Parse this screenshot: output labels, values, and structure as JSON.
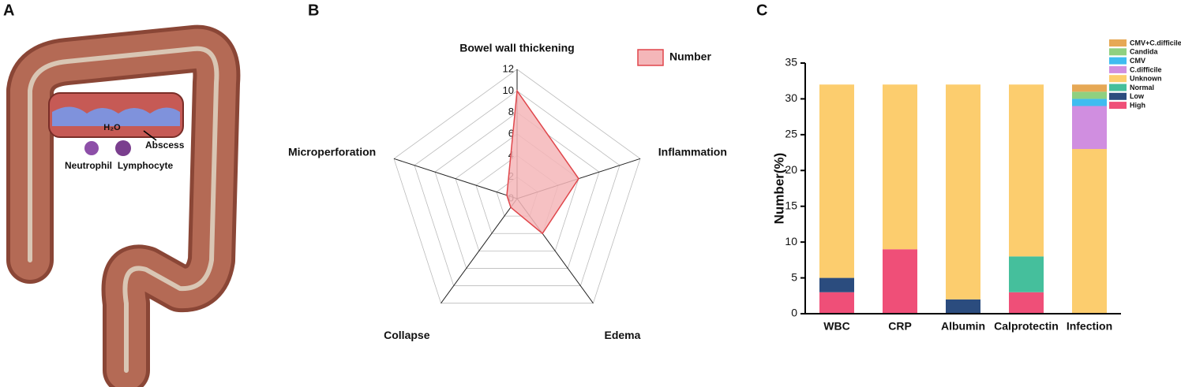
{
  "illustration": {
    "panel_label": "A",
    "labels": [
      "H₂O",
      "Abscess",
      "Neutrophil",
      "Lymphocyte"
    ]
  },
  "chart_data": [
    {
      "type": "radar",
      "panel_label": "B",
      "categories": [
        "Bowel wall thickening",
        "Inflammation",
        "Edema",
        "Collapse",
        "Microperforation"
      ],
      "series": [
        {
          "name": "Number",
          "color": "#f4b6b9",
          "edge_color": "#e0474c",
          "values": [
            10,
            6,
            4,
            1,
            1
          ]
        }
      ],
      "rlim": [
        0,
        12
      ],
      "rticks": [
        0,
        2,
        4,
        6,
        8,
        10,
        12
      ],
      "legend": "upper right"
    },
    {
      "type": "stacked_bar",
      "panel_label": "C",
      "ylabel": "Number(%)",
      "categories": [
        "WBC",
        "CRP",
        "Albumin",
        "Calprotectin",
        "Infection"
      ],
      "series": [
        {
          "name": "High",
          "color": "#ef4f78",
          "values": [
            3,
            9,
            0,
            3,
            0
          ]
        },
        {
          "name": "Low",
          "color": "#2b4c7e",
          "values": [
            2,
            0,
            2,
            0,
            0
          ]
        },
        {
          "name": "Normal",
          "color": "#45bf9c",
          "values": [
            0,
            0,
            0,
            5,
            0
          ]
        },
        {
          "name": "Unknown",
          "color": "#fccd6e",
          "values": [
            27,
            23,
            30,
            24,
            23
          ]
        },
        {
          "name": "C.difficile",
          "color": "#d08ee0",
          "values": [
            0,
            0,
            0,
            0,
            6
          ]
        },
        {
          "name": "CMV",
          "color": "#3fbcf0",
          "values": [
            0,
            0,
            0,
            0,
            1
          ]
        },
        {
          "name": "Candida",
          "color": "#8fd080",
          "values": [
            0,
            0,
            0,
            0,
            1
          ]
        },
        {
          "name": "CMV+C.difficile",
          "color": "#e6a855",
          "values": [
            0,
            0,
            0,
            0,
            1
          ]
        }
      ],
      "ylim": [
        0,
        35
      ],
      "yticks": [
        0,
        5,
        10,
        15,
        20,
        25,
        30,
        35
      ],
      "legend": "upper right"
    }
  ]
}
